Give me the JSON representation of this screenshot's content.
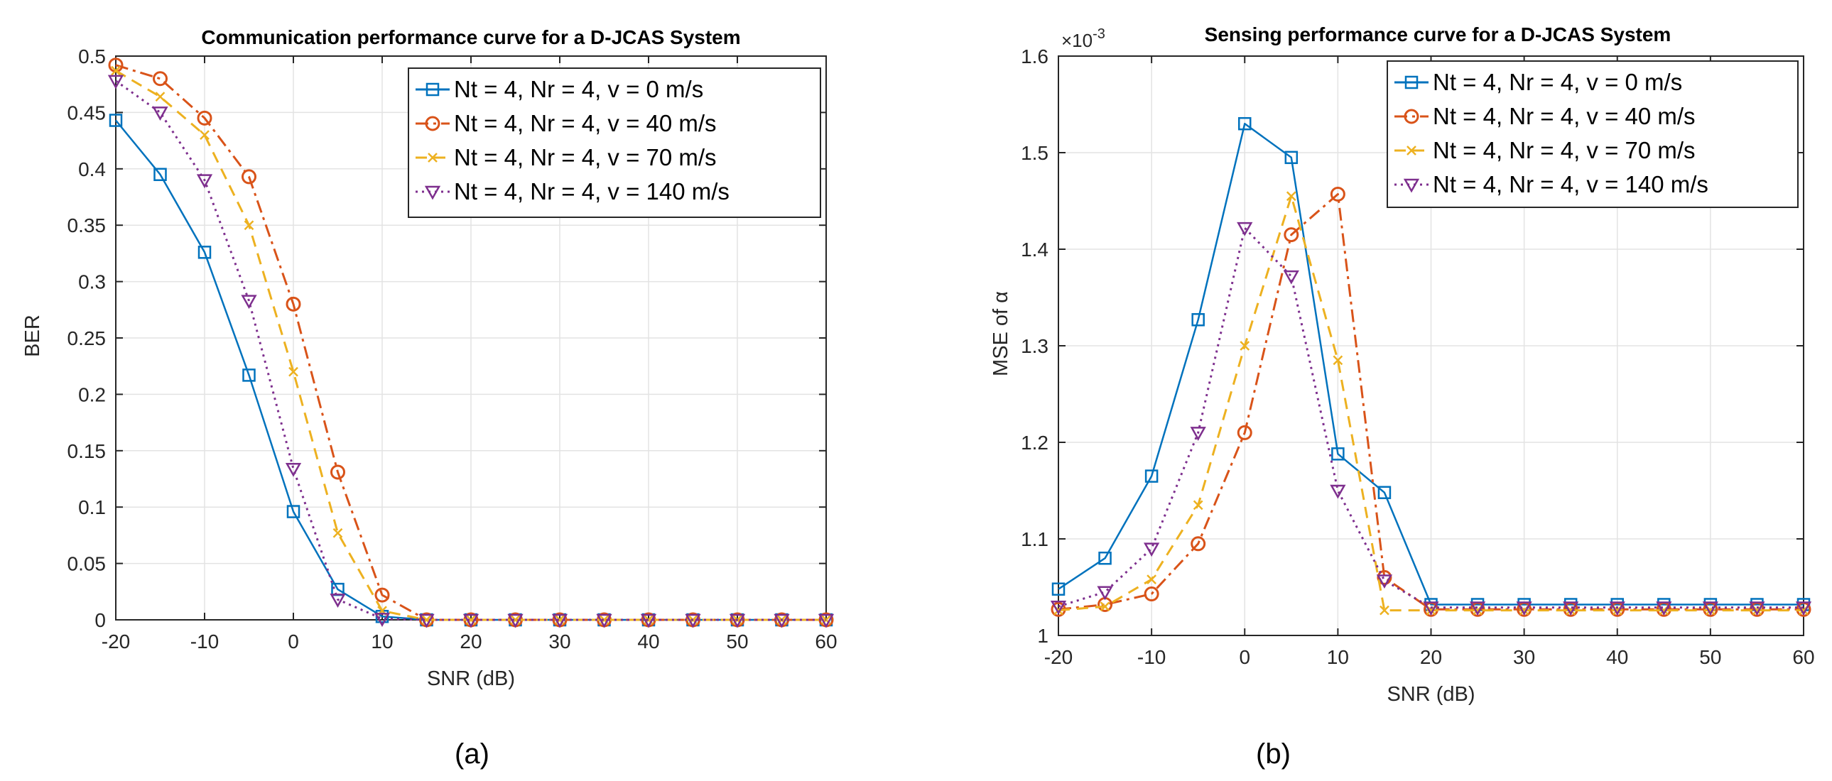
{
  "chart_data": [
    {
      "type": "line",
      "title": "Communication performance curve for a D-JCAS System",
      "xlabel": "SNR (dB)",
      "ylabel": "BER",
      "xlim": [
        -20,
        60
      ],
      "ylim": [
        0,
        0.5
      ],
      "grid": true,
      "legend_position": "top-right",
      "caption": "(a)",
      "x": [
        -20,
        -15,
        -10,
        -5,
        0,
        5,
        10,
        15,
        20,
        25,
        30,
        35,
        40,
        45,
        50,
        55,
        60
      ],
      "xticks": [
        -20,
        -10,
        0,
        10,
        20,
        30,
        40,
        50,
        60
      ],
      "xtick_labels": [
        "-20",
        "-10",
        "0",
        "10",
        "20",
        "30",
        "40",
        "50",
        "60"
      ],
      "yticks": [
        0,
        0.05,
        0.1,
        0.15,
        0.2,
        0.25,
        0.3,
        0.35,
        0.4,
        0.45,
        0.5
      ],
      "ytick_labels": [
        "0",
        "0.05",
        "0.1",
        "0.15",
        "0.2",
        "0.25",
        "0.3",
        "0.35",
        "0.4",
        "0.45",
        "0.5"
      ],
      "series": [
        {
          "name": "Nt = 4, Nr = 4, v = 0 m/s",
          "color": "#0072BD",
          "marker": "square",
          "dash": "solid",
          "values": [
            0.443,
            0.395,
            0.326,
            0.217,
            0.096,
            0.027,
            0.003,
            0,
            0,
            0,
            0,
            0,
            0,
            0,
            0,
            0,
            0
          ]
        },
        {
          "name": "Nt = 4, Nr = 4, v = 40 m/s",
          "color": "#D95319",
          "marker": "circle",
          "dash": "dashdot",
          "values": [
            0.492,
            0.48,
            0.445,
            0.393,
            0.28,
            0.131,
            0.022,
            0,
            0,
            0,
            0,
            0,
            0,
            0,
            0,
            0,
            0
          ]
        },
        {
          "name": "Nt = 4, Nr = 4, v = 70 m/s",
          "color": "#EDB120",
          "marker": "x",
          "dash": "dashed",
          "values": [
            0.487,
            0.464,
            0.43,
            0.35,
            0.22,
            0.077,
            0.008,
            0,
            0,
            0,
            0,
            0,
            0,
            0,
            0,
            0,
            0
          ]
        },
        {
          "name": "Nt = 4, Nr = 4, v = 140 m/s",
          "color": "#7E2F8E",
          "marker": "triangle-down",
          "dash": "dotted",
          "values": [
            0.478,
            0.45,
            0.39,
            0.283,
            0.134,
            0.018,
            0.001,
            0,
            0,
            0,
            0,
            0,
            0,
            0,
            0,
            0,
            0
          ]
        }
      ]
    },
    {
      "type": "line",
      "title": "Sensing performance curve for a D-JCAS System",
      "exponent_label": "×10",
      "exponent_power": "-3",
      "xlabel": "SNR (dB)",
      "ylabel": "MSE of α",
      "xlim": [
        -20,
        60
      ],
      "ylim": [
        1.0,
        1.6
      ],
      "grid": true,
      "legend_position": "top-right",
      "caption": "(b)",
      "x": [
        -20,
        -15,
        -10,
        -5,
        0,
        5,
        10,
        15,
        20,
        25,
        30,
        35,
        40,
        45,
        50,
        55,
        60
      ],
      "xticks": [
        -20,
        -10,
        0,
        10,
        20,
        30,
        40,
        50,
        60
      ],
      "xtick_labels": [
        "-20",
        "-10",
        "0",
        "10",
        "20",
        "30",
        "40",
        "50",
        "60"
      ],
      "yticks": [
        1.0,
        1.1,
        1.2,
        1.3,
        1.4,
        1.5,
        1.6
      ],
      "ytick_labels": [
        "1",
        "1.1",
        "1.2",
        "1.3",
        "1.4",
        "1.5",
        "1.6"
      ],
      "series": [
        {
          "name": "Nt = 4, Nr = 4, v = 0 m/s",
          "color": "#0072BD",
          "marker": "square",
          "dash": "solid",
          "values": [
            1.048,
            1.08,
            1.165,
            1.327,
            1.53,
            1.495,
            1.188,
            1.148,
            1.032,
            1.032,
            1.032,
            1.032,
            1.032,
            1.032,
            1.032,
            1.032,
            1.032
          ]
        },
        {
          "name": "Nt = 4, Nr = 4, v = 40 m/s",
          "color": "#D95319",
          "marker": "circle",
          "dash": "dashdot",
          "values": [
            1.027,
            1.032,
            1.043,
            1.095,
            1.21,
            1.415,
            1.457,
            1.06,
            1.027,
            1.027,
            1.027,
            1.027,
            1.027,
            1.027,
            1.027,
            1.027,
            1.027
          ]
        },
        {
          "name": "Nt = 4, Nr = 4, v = 70 m/s",
          "color": "#EDB120",
          "marker": "x",
          "dash": "dashed",
          "values": [
            1.026,
            1.03,
            1.058,
            1.135,
            1.3,
            1.455,
            1.285,
            1.026,
            1.026,
            1.026,
            1.026,
            1.026,
            1.026,
            1.026,
            1.026,
            1.026,
            1.026
          ]
        },
        {
          "name": "Nt = 4, Nr = 4, v = 140 m/s",
          "color": "#7E2F8E",
          "marker": "triangle-down",
          "dash": "dotted",
          "values": [
            1.03,
            1.045,
            1.09,
            1.21,
            1.422,
            1.372,
            1.15,
            1.057,
            1.029,
            1.029,
            1.029,
            1.029,
            1.029,
            1.029,
            1.029,
            1.029,
            1.029
          ]
        }
      ]
    }
  ]
}
